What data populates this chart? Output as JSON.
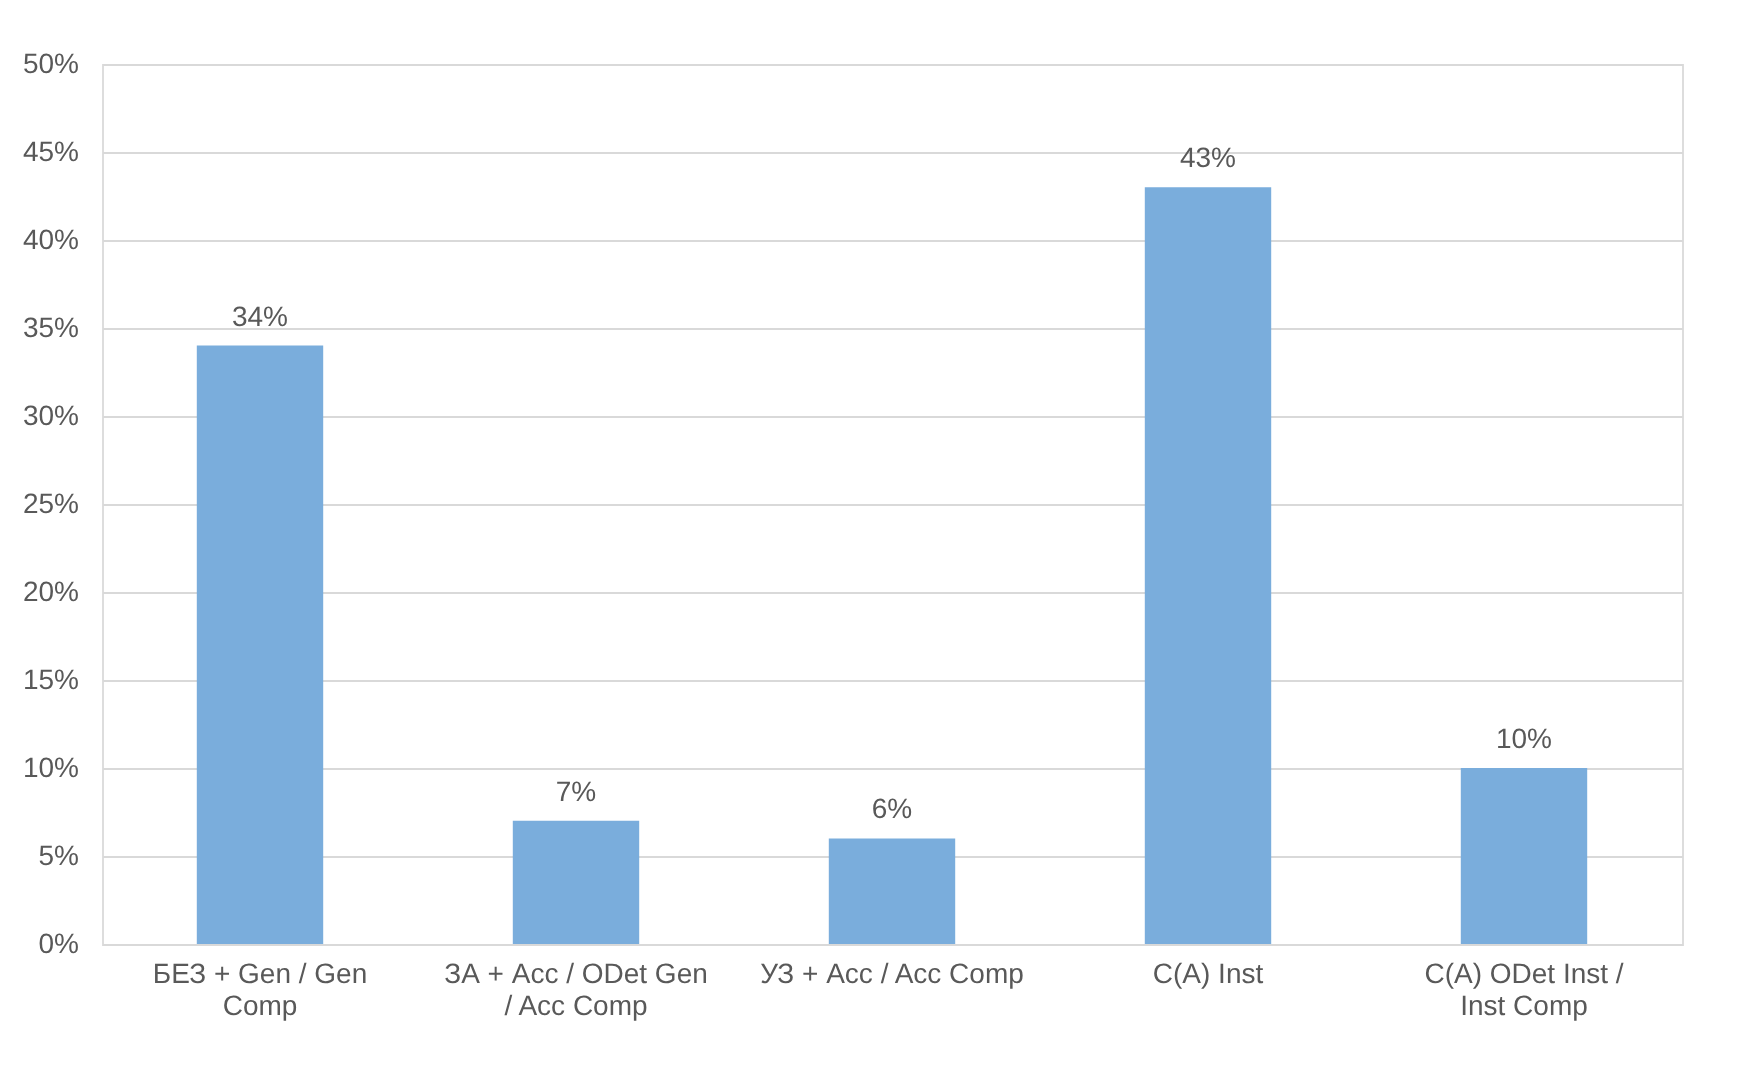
{
  "chart_data": {
    "type": "bar",
    "categories": [
      "БЕЗ + Gen / Gen Comp",
      "ЗА + Acc / ODet Gen / Acc Comp",
      "УЗ + Acc / Acc Comp",
      "С(A) Inst",
      "С(A) ODet Inst / Inst Comp"
    ],
    "values": [
      34,
      7,
      6,
      43,
      10
    ],
    "value_labels": [
      "34%",
      "7%",
      "6%",
      "43%",
      "10%"
    ],
    "color": "#7aaddc",
    "ylim": [
      0,
      50
    ],
    "yticks": [
      {
        "value": 0,
        "label": "0%"
      },
      {
        "value": 5,
        "label": "5%"
      },
      {
        "value": 10,
        "label": "10%"
      },
      {
        "value": 15,
        "label": "15%"
      },
      {
        "value": 20,
        "label": "20%"
      },
      {
        "value": 25,
        "label": "25%"
      },
      {
        "value": 30,
        "label": "30%"
      },
      {
        "value": 35,
        "label": "35%"
      },
      {
        "value": 40,
        "label": "40%"
      },
      {
        "value": 45,
        "label": "45%"
      },
      {
        "value": 50,
        "label": "50%"
      }
    ],
    "grid": "y"
  }
}
